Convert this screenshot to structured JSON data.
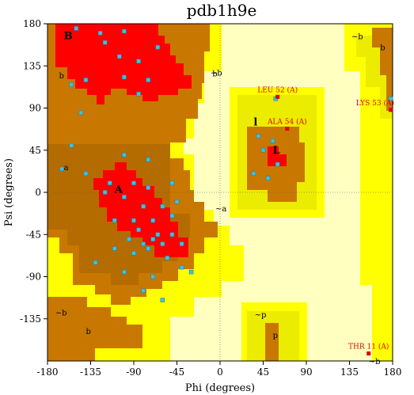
{
  "chart_data": {
    "type": "scatter",
    "title": "pdb1h9e",
    "xlabel": "Phi (degrees)",
    "ylabel": "Psi (degrees)",
    "xlim": [
      -180,
      180
    ],
    "ylim": [
      -180,
      180
    ],
    "xticks": [
      -180,
      -135,
      -90,
      -45,
      0,
      45,
      90,
      135,
      180
    ],
    "yticks": [
      180,
      135,
      90,
      45,
      0,
      -45,
      -90,
      -135
    ],
    "grid": false,
    "colors": {
      "core": "#ff0000",
      "allowed": "#c87800",
      "generous": "#ffff00",
      "generous2": "#ecec00",
      "disallowed": "#ffffc0",
      "point": "#40c0e0",
      "outlier": "#e00000"
    },
    "region_labels": [
      {
        "text": "B",
        "phi": -163,
        "psi": 167,
        "big": true
      },
      {
        "text": "b",
        "phi": -168,
        "psi": 125
      },
      {
        "text": "b",
        "phi": -8,
        "psi": 127
      },
      {
        "text": "~b",
        "phi": -10,
        "psi": 128
      },
      {
        "text": "A",
        "phi": -110,
        "psi": 3,
        "big": true
      },
      {
        "text": "a",
        "phi": -163,
        "psi": 27
      },
      {
        "text": "~a",
        "phi": -5,
        "psi": -17
      },
      {
        "text": "l",
        "phi": 35,
        "psi": 75,
        "big": true
      },
      {
        "text": "L",
        "phi": 55,
        "psi": 45,
        "big": true
      },
      {
        "text": "~b",
        "phi": 137,
        "psi": 167
      },
      {
        "text": "b",
        "phi": 167,
        "psi": 155
      },
      {
        "text": "~b",
        "phi": -172,
        "psi": -128
      },
      {
        "text": "b",
        "phi": -140,
        "psi": -148
      },
      {
        "text": "~p",
        "phi": 36,
        "psi": -130
      },
      {
        "text": "p",
        "phi": 55,
        "psi": -152
      },
      {
        "text": "~b",
        "phi": 155,
        "psi": -180
      }
    ],
    "points": [
      [
        -150,
        175
      ],
      [
        -125,
        170
      ],
      [
        -100,
        172
      ],
      [
        -120,
        160
      ],
      [
        -105,
        145
      ],
      [
        -85,
        140
      ],
      [
        -65,
        155
      ],
      [
        -140,
        120
      ],
      [
        -155,
        115
      ],
      [
        -100,
        123
      ],
      [
        -75,
        120
      ],
      [
        -85,
        105
      ],
      [
        -145,
        85
      ],
      [
        -155,
        50
      ],
      [
        -100,
        40
      ],
      [
        -75,
        35
      ],
      [
        -165,
        25
      ],
      [
        -140,
        20
      ],
      [
        -115,
        10
      ],
      [
        -90,
        10
      ],
      [
        -75,
        5
      ],
      [
        -50,
        10
      ],
      [
        -120,
        0
      ],
      [
        -100,
        -5
      ],
      [
        -80,
        -15
      ],
      [
        -60,
        -15
      ],
      [
        -45,
        -10
      ],
      [
        -110,
        -30
      ],
      [
        -90,
        -30
      ],
      [
        -70,
        -30
      ],
      [
        -50,
        -25
      ],
      [
        -85,
        -40
      ],
      [
        -65,
        -45
      ],
      [
        -50,
        -45
      ],
      [
        -40,
        -55
      ],
      [
        -95,
        -50
      ],
      [
        -80,
        -55
      ],
      [
        -70,
        -50
      ],
      [
        -60,
        -55
      ],
      [
        -75,
        -60
      ],
      [
        -90,
        -65
      ],
      [
        -110,
        -60
      ],
      [
        -55,
        -70
      ],
      [
        -130,
        -75
      ],
      [
        -100,
        -85
      ],
      [
        -70,
        -90
      ],
      [
        -80,
        -105
      ],
      [
        -60,
        -115
      ],
      [
        -30,
        -85
      ],
      [
        -40,
        -80
      ],
      [
        45,
        45
      ],
      [
        60,
        30
      ],
      [
        35,
        20
      ],
      [
        50,
        15
      ],
      [
        55,
        55
      ],
      [
        40,
        60
      ],
      [
        58,
        100
      ],
      [
        178,
        100
      ]
    ],
    "outliers": [
      {
        "label": "LEU 52 (A)",
        "phi": 60,
        "psi": 102
      },
      {
        "label": "LYS 53 (A)",
        "phi": 178,
        "psi": 88
      },
      {
        "label": "ALA 54 (A)",
        "phi": 70,
        "psi": 68
      },
      {
        "label": "THR 11 (A)",
        "phi": 155,
        "psi": -172
      }
    ]
  }
}
